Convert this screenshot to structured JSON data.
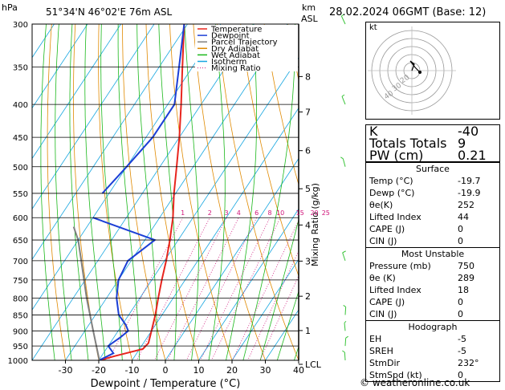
{
  "header": {
    "hpa_label": "hPa",
    "location": "51°34'N 46°02'E 76m ASL",
    "km_label": "km",
    "asl_label": "ASL",
    "datetime": "28.02.2024 06GMT (Base: 12)"
  },
  "legend": [
    {
      "name": "Temperature",
      "color": "#e8251e"
    },
    {
      "name": "Dewpoint",
      "color": "#1c3fd6"
    },
    {
      "name": "Parcel Trajectory",
      "color": "#808080"
    },
    {
      "name": "Dry Adiabat",
      "color": "#e08a00"
    },
    {
      "name": "Wet Adiabat",
      "color": "#1bb81b"
    },
    {
      "name": "Isotherm",
      "color": "#16a6e0"
    },
    {
      "name": "Mixing Ratio",
      "color": "#d0157a"
    }
  ],
  "chart_data": {
    "type": "line",
    "title": "51°34'N 46°02'E 76m ASL",
    "xlabel": "Dewpoint / Temperature (°C)",
    "ylabel": "hPa",
    "ylabel_right": "Mixing Ratio (g/kg)",
    "xlim": [
      -40,
      40
    ],
    "ylim": [
      1000,
      300
    ],
    "x_ticks": [
      -30,
      -20,
      -10,
      0,
      10,
      20,
      30,
      40
    ],
    "p_ticks": [
      300,
      350,
      400,
      450,
      500,
      550,
      600,
      650,
      700,
      750,
      800,
      850,
      900,
      950,
      1000
    ],
    "km_ticks": [
      {
        "label": "8",
        "p": 362
      },
      {
        "label": "7",
        "p": 411
      },
      {
        "label": "6",
        "p": 472
      },
      {
        "label": "5",
        "p": 541
      },
      {
        "label": "4",
        "p": 616
      },
      {
        "label": "3",
        "p": 701
      },
      {
        "label": "2",
        "p": 795
      },
      {
        "label": "1",
        "p": 899
      },
      {
        "label": "LCL",
        "p": 1012
      }
    ],
    "mixing_ratio_labels": [
      "1",
      "2",
      "3",
      "4",
      "6",
      "8",
      "10",
      "15",
      "20",
      "25"
    ],
    "series": [
      {
        "name": "Temperature",
        "color": "#e8251e",
        "points": [
          {
            "p": 1000,
            "t": -19.7
          },
          {
            "p": 985,
            "t": -16
          },
          {
            "p": 960,
            "t": -9
          },
          {
            "p": 940,
            "t": -8.5
          },
          {
            "p": 900,
            "t": -10
          },
          {
            "p": 850,
            "t": -12
          },
          {
            "p": 800,
            "t": -14.5
          },
          {
            "p": 750,
            "t": -17
          },
          {
            "p": 700,
            "t": -19.5
          },
          {
            "p": 650,
            "t": -22.5
          },
          {
            "p": 600,
            "t": -26
          },
          {
            "p": 550,
            "t": -30.5
          },
          {
            "p": 500,
            "t": -35
          },
          {
            "p": 450,
            "t": -40
          },
          {
            "p": 400,
            "t": -46
          },
          {
            "p": 350,
            "t": -53
          },
          {
            "p": 300,
            "t": -61
          }
        ]
      },
      {
        "name": "Dewpoint",
        "color": "#1c3fd6",
        "points": [
          {
            "p": 1000,
            "t": -19.9
          },
          {
            "p": 975,
            "t": -17
          },
          {
            "p": 950,
            "t": -20
          },
          {
            "p": 920,
            "t": -18
          },
          {
            "p": 900,
            "t": -17
          },
          {
            "p": 880,
            "t": -19
          },
          {
            "p": 850,
            "t": -23
          },
          {
            "p": 800,
            "t": -27
          },
          {
            "p": 750,
            "t": -30
          },
          {
            "p": 700,
            "t": -31
          },
          {
            "p": 650,
            "t": -27
          },
          {
            "p": 600,
            "t": -50
          }
        ]
      },
      {
        "name": "Dewpoint (upper)",
        "color": "#1c3fd6",
        "points": [
          {
            "p": 550,
            "t": -52
          },
          {
            "p": 500,
            "t": -50
          },
          {
            "p": 450,
            "t": -48
          },
          {
            "p": 400,
            "t": -48
          },
          {
            "p": 350,
            "t": -54
          },
          {
            "p": 300,
            "t": -61
          }
        ]
      },
      {
        "name": "Parcel Trajectory",
        "color": "#808080",
        "points": [
          {
            "p": 1000,
            "t": -19.8
          },
          {
            "p": 900,
            "t": -27.5
          },
          {
            "p": 800,
            "t": -36
          },
          {
            "p": 700,
            "t": -45
          },
          {
            "p": 650,
            "t": -50
          },
          {
            "p": 620,
            "t": -54
          }
        ]
      }
    ]
  },
  "hodograph": {
    "label": "kt",
    "ring_labels": [
      "20",
      "30",
      "40"
    ]
  },
  "indices": {
    "top": [
      {
        "label": "K",
        "value": "-40"
      },
      {
        "label": "Totals Totals",
        "value": "9"
      },
      {
        "label": "PW (cm)",
        "value": "0.21"
      }
    ],
    "surface_title": "Surface",
    "surface": [
      {
        "label": "Temp (°C)",
        "value": "-19.7"
      },
      {
        "label": "Dewp (°C)",
        "value": "-19.9"
      },
      {
        "label": "θe(K)",
        "value": "252"
      },
      {
        "label": "Lifted Index",
        "value": "44"
      },
      {
        "label": "CAPE (J)",
        "value": "0"
      },
      {
        "label": "CIN (J)",
        "value": "0"
      }
    ],
    "unstable_title": "Most Unstable",
    "unstable": [
      {
        "label": "Pressure (mb)",
        "value": "750"
      },
      {
        "label": "θe (K)",
        "value": "289"
      },
      {
        "label": "Lifted Index",
        "value": "18"
      },
      {
        "label": "CAPE (J)",
        "value": "0"
      },
      {
        "label": "CIN (J)",
        "value": "0"
      }
    ],
    "hodo_title": "Hodograph",
    "hodo": [
      {
        "label": "EH",
        "value": "-5"
      },
      {
        "label": "SREH",
        "value": "-5"
      },
      {
        "label": "StmDir",
        "value": "232°"
      },
      {
        "label": "StmSpd (kt)",
        "value": "0"
      }
    ]
  },
  "footer": "© weatheronline.co.uk"
}
